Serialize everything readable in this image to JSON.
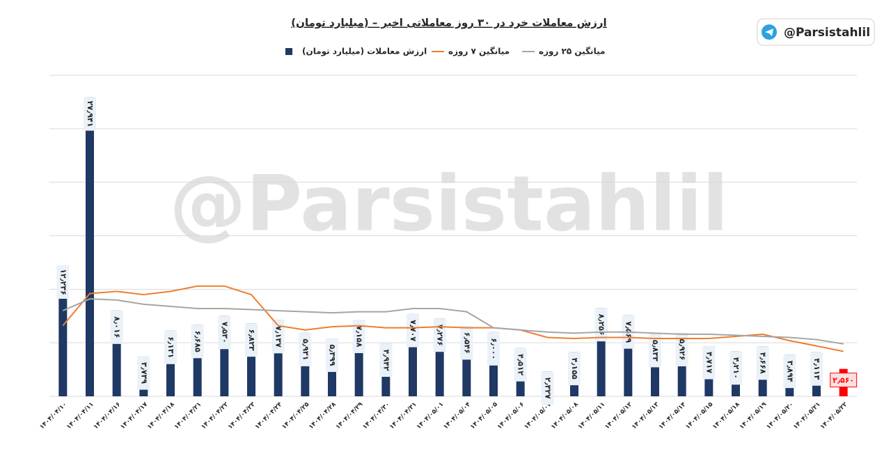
{
  "chart_data": {
    "type": "bar",
    "title": "ارزش معاملات خرد در ۳۰ روز معاملاتی اخیر – (میلیارد تومان)",
    "watermark": "@Parsistahlil",
    "badge": "@Parsistahlil",
    "categories": [
      "۱۴۰۴/۰۴/۱۰",
      "۱۴۰۴/۰۴/۱۱",
      "۱۴۰۴/۰۴/۱۶",
      "۱۴۰۴/۰۴/۱۷",
      "۱۴۰۴/۰۴/۱۸",
      "۱۴۰۴/۰۴/۲۱",
      "۱۴۰۴/۰۴/۲۲",
      "۱۴۰۴/۰۴/۲۳",
      "۱۴۰۴/۰۴/۲۴",
      "۱۴۰۴/۰۴/۲۵",
      "۱۴۰۴/۰۴/۲۸",
      "۱۴۰۴/۰۴/۲۹",
      "۱۴۰۴/۰۴/۳۰",
      "۱۴۰۴/۰۴/۳۱",
      "۱۴۰۴/۰۵/۰۱",
      "۱۴۰۴/۰۵/۰۴",
      "۱۴۰۴/۰۵/۰۵",
      "۱۴۰۴/۰۵/۰۶",
      "۱۴۰۴/۰۵/۰۷",
      "۱۴۰۴/۰۵/۰۸",
      "۱۴۰۴/۰۵/۱۱",
      "۱۴۰۴/۰۵/۱۲",
      "۱۴۰۴/۰۵/۱۳",
      "۱۴۰۴/۰۵/۱۴",
      "۱۴۰۴/۰۵/۱۵",
      "۱۴۰۴/۰۵/۱۸",
      "۱۴۰۴/۰۵/۱۹",
      "۱۴۰۴/۰۵/۲۰",
      "۱۴۰۴/۰۵/۲۱",
      "۱۴۰۴/۰۵/۲۲"
    ],
    "series": [
      {
        "name": "ارزش معاملات (میلیارد تومان)",
        "type": "bar",
        "color": "#1f3864",
        "colors": [
          "#1f3864",
          "#1f3864",
          "#1f3864",
          "#1f3864",
          "#1f3864",
          "#1f3864",
          "#1f3864",
          "#1f3864",
          "#1f3864",
          "#1f3864",
          "#1f3864",
          "#1f3864",
          "#1f3864",
          "#1f3864",
          "#1f3864",
          "#1f3864",
          "#1f3864",
          "#1f3864",
          "#1f3864",
          "#1f3864",
          "#1f3864",
          "#1f3864",
          "#1f3864",
          "#1f3864",
          "#1f3864",
          "#1f3864",
          "#1f3864",
          "#1f3864",
          "#1f3864",
          "#ff0000"
        ],
        "values": [
          12.236,
          27.941,
          8.016,
          3.739,
          6.131,
          6.685,
          7.53,
          6.823,
          7.137,
          5.931,
          5.399,
          7.158,
          4.942,
          7.707,
          7.276,
          6.546,
          6.0,
          4.512,
          2.327,
          4.155,
          8.256,
          7.569,
          5.833,
          5.926,
          4.717,
          4.21,
          4.668,
          3.894,
          4.113,
          2.56
        ],
        "value_labels": [
          "۱۲٫۲۳۶",
          "۲۷٫۹۴۱",
          "۸٫۰۱۶",
          "۳٫۷۳۹",
          "۶٫۱۳۱",
          "۶٫۶۸۵",
          "۷٫۵۳۰",
          "۶٫۸۲۳",
          "۷٫۱۳۷",
          "۵٫۹۳۱",
          "۵٫۳۹۹",
          "۷٫۱۵۸",
          "۴٫۹۴۲",
          "۷٫۷۰۷",
          "۷٫۲۷۶",
          "۶٫۵۴۶",
          "۶٫۰۰۰",
          "۴٫۵۱۲",
          "۲٫۳۲۷",
          "۴٫۱۵۵",
          "۸٫۲۵۶",
          "۷٫۵۶۹",
          "۵٫۸۳۳",
          "۵٫۹۲۶",
          "۴٫۷۱۷",
          "۴٫۲۱۰",
          "۴٫۶۶۸",
          "۳٫۸۹۴",
          "۴٫۱۱۳",
          "۲٫۵۶۰"
        ]
      },
      {
        "name": "میانگین ۷ روزه",
        "type": "line",
        "color": "#ed7d31",
        "values": [
          6.6,
          9.6,
          9.8,
          9.5,
          9.8,
          10.3,
          10.3,
          9.5,
          6.6,
          6.2,
          6.5,
          6.6,
          6.4,
          6.4,
          6.5,
          6.4,
          6.4,
          6.2,
          5.5,
          5.4,
          5.5,
          5.5,
          5.4,
          5.4,
          5.4,
          5.6,
          5.8,
          5.2,
          4.7,
          4.2
        ]
      },
      {
        "name": "میانگین ۲۵ روزه",
        "type": "line",
        "color": "#a5a5a5",
        "values": [
          8.0,
          9.1,
          9.0,
          8.6,
          8.4,
          8.2,
          8.2,
          8.1,
          8.0,
          7.9,
          7.8,
          7.9,
          7.9,
          8.2,
          8.2,
          7.9,
          6.4,
          6.2,
          6.0,
          5.9,
          6.0,
          6.0,
          5.9,
          5.8,
          5.8,
          5.7,
          5.6,
          5.5,
          5.3,
          4.9
        ]
      }
    ],
    "ylim": [
      0,
      30
    ],
    "yticks": [
      0,
      5,
      10,
      15,
      20,
      25,
      30
    ],
    "grid": true
  }
}
